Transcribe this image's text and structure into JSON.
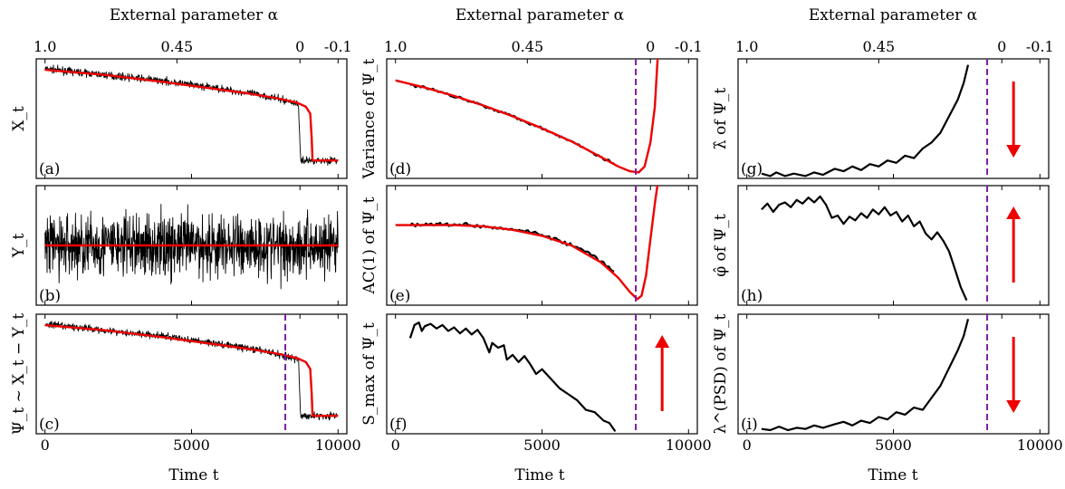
{
  "colors": {
    "data": "#000000",
    "model": "#ee0000",
    "threshold": "#7a1fa2",
    "arrow": "#ee0000"
  },
  "top_axis": {
    "label": "External parameter α",
    "ticks": [
      "1.0",
      "0.45",
      "0",
      "-0.1"
    ],
    "tick_times": [
      0,
      4500,
      8700,
      10000
    ]
  },
  "bottom_axis": {
    "label": "Time t",
    "ticks": [
      "0",
      "5000",
      "10000"
    ],
    "tick_times": [
      0,
      5000,
      10000
    ]
  },
  "x_range": [
    -300,
    10300
  ],
  "threshold_time": 8200,
  "chart_data": [
    {
      "id": "a",
      "type": "line",
      "panel_label": "(a)",
      "ylabel": "X_t",
      "ylim": [
        -0.1,
        1.1
      ],
      "series": [
        {
          "role": "data",
          "kind": "noisy",
          "noise": 0.025,
          "points": [
            [
              0,
              1.0
            ],
            [
              2000,
              0.94
            ],
            [
              4000,
              0.88
            ],
            [
              6000,
              0.8
            ],
            [
              7500,
              0.73
            ],
            [
              8500,
              0.66
            ],
            [
              8650,
              0.64
            ],
            [
              8720,
              0.08
            ],
            [
              10000,
              0.08
            ]
          ]
        },
        {
          "role": "model",
          "points": [
            [
              0,
              0.99
            ],
            [
              2000,
              0.94
            ],
            [
              4000,
              0.87
            ],
            [
              6000,
              0.79
            ],
            [
              7000,
              0.75
            ],
            [
              8000,
              0.7
            ],
            [
              8600,
              0.66
            ],
            [
              8900,
              0.62
            ],
            [
              9050,
              0.55
            ],
            [
              9100,
              0.3
            ],
            [
              9130,
              0.08
            ],
            [
              10000,
              0.08
            ]
          ]
        }
      ]
    },
    {
      "id": "b",
      "type": "line",
      "panel_label": "(b)",
      "ylabel": "Y_t",
      "ylim": [
        -1.0,
        1.0
      ],
      "series": [
        {
          "role": "data",
          "kind": "noise_band",
          "amplitude": 0.9,
          "points": [
            [
              0,
              0
            ],
            [
              10000,
              0
            ]
          ]
        },
        {
          "role": "model",
          "points": [
            [
              0,
              0
            ],
            [
              10000,
              0
            ]
          ]
        }
      ]
    },
    {
      "id": "c",
      "type": "line",
      "panel_label": "(c)",
      "ylabel": "Ψ_t ~ X_t − Y_t",
      "ylim": [
        -0.1,
        1.1
      ],
      "threshold": true,
      "series": [
        {
          "role": "data",
          "kind": "noisy",
          "noise": 0.025,
          "points": [
            [
              0,
              1.0
            ],
            [
              2000,
              0.94
            ],
            [
              4000,
              0.88
            ],
            [
              6000,
              0.8
            ],
            [
              7500,
              0.73
            ],
            [
              8500,
              0.66
            ],
            [
              8650,
              0.64
            ],
            [
              8720,
              0.08
            ],
            [
              10000,
              0.08
            ]
          ]
        },
        {
          "role": "model",
          "points": [
            [
              0,
              0.99
            ],
            [
              2000,
              0.94
            ],
            [
              4000,
              0.87
            ],
            [
              6000,
              0.79
            ],
            [
              7000,
              0.75
            ],
            [
              8000,
              0.7
            ],
            [
              8600,
              0.66
            ],
            [
              8900,
              0.62
            ],
            [
              9050,
              0.55
            ],
            [
              9100,
              0.3
            ],
            [
              9130,
              0.08
            ],
            [
              10000,
              0.08
            ]
          ]
        }
      ]
    },
    {
      "id": "d",
      "type": "line",
      "panel_label": "(d)",
      "ylabel": "Variance of Ψ_t",
      "ylim": [
        0,
        1
      ],
      "threshold": true,
      "series": [
        {
          "role": "data",
          "kind": "jitter",
          "noise": 0.008,
          "points": [
            [
              500,
              0.78
            ],
            [
              1000,
              0.76
            ],
            [
              2000,
              0.69
            ],
            [
              3000,
              0.61
            ],
            [
              4000,
              0.52
            ],
            [
              5000,
              0.42
            ],
            [
              6000,
              0.31
            ],
            [
              7000,
              0.18
            ],
            [
              7500,
              0.12
            ]
          ]
        },
        {
          "role": "model",
          "points": [
            [
              0,
              0.82
            ],
            [
              1000,
              0.76
            ],
            [
              2000,
              0.69
            ],
            [
              3000,
              0.61
            ],
            [
              4000,
              0.52
            ],
            [
              5000,
              0.42
            ],
            [
              6000,
              0.31
            ],
            [
              7000,
              0.18
            ],
            [
              7600,
              0.1
            ],
            [
              8000,
              0.06
            ],
            [
              8300,
              0.05
            ],
            [
              8500,
              0.1
            ],
            [
              8700,
              0.3
            ],
            [
              8850,
              0.6
            ],
            [
              8950,
              1.02
            ]
          ]
        }
      ]
    },
    {
      "id": "e",
      "type": "line",
      "panel_label": "(e)",
      "ylabel": "AC(1) of Ψ_t",
      "ylim": [
        0,
        1
      ],
      "threshold": true,
      "series": [
        {
          "role": "data",
          "kind": "jitter",
          "noise": 0.01,
          "points": [
            [
              500,
              0.67
            ],
            [
              1500,
              0.68
            ],
            [
              2500,
              0.67
            ],
            [
              3500,
              0.65
            ],
            [
              4500,
              0.62
            ],
            [
              5500,
              0.55
            ],
            [
              6500,
              0.45
            ],
            [
              7200,
              0.33
            ],
            [
              7500,
              0.27
            ]
          ]
        },
        {
          "role": "model",
          "points": [
            [
              0,
              0.67
            ],
            [
              2000,
              0.67
            ],
            [
              3000,
              0.66
            ],
            [
              4000,
              0.63
            ],
            [
              5000,
              0.58
            ],
            [
              6000,
              0.5
            ],
            [
              7000,
              0.36
            ],
            [
              7600,
              0.23
            ],
            [
              8000,
              0.11
            ],
            [
              8250,
              0.05
            ],
            [
              8400,
              0.08
            ],
            [
              8550,
              0.25
            ],
            [
              8700,
              0.55
            ],
            [
              8850,
              0.85
            ],
            [
              8950,
              1.02
            ]
          ]
        }
      ]
    },
    {
      "id": "f",
      "type": "line",
      "panel_label": "(f)",
      "ylabel": "S_max of Ψ_t",
      "ylim": [
        0,
        1
      ],
      "threshold": true,
      "arrow": "up",
      "series": [
        {
          "role": "data",
          "points": [
            [
              500,
              0.8
            ],
            [
              650,
              0.91
            ],
            [
              800,
              0.93
            ],
            [
              900,
              0.86
            ],
            [
              1000,
              0.9
            ],
            [
              1200,
              0.92
            ],
            [
              1400,
              0.88
            ],
            [
              1600,
              0.91
            ],
            [
              1800,
              0.86
            ],
            [
              2000,
              0.89
            ],
            [
              2200,
              0.84
            ],
            [
              2400,
              0.88
            ],
            [
              2600,
              0.83
            ],
            [
              2800,
              0.87
            ],
            [
              3000,
              0.8
            ],
            [
              3200,
              0.68
            ],
            [
              3300,
              0.76
            ],
            [
              3500,
              0.72
            ],
            [
              3700,
              0.74
            ],
            [
              3800,
              0.62
            ],
            [
              4000,
              0.66
            ],
            [
              4200,
              0.6
            ],
            [
              4400,
              0.65
            ],
            [
              4600,
              0.58
            ],
            [
              4800,
              0.5
            ],
            [
              5000,
              0.54
            ],
            [
              5300,
              0.46
            ],
            [
              5600,
              0.38
            ],
            [
              5900,
              0.33
            ],
            [
              6200,
              0.28
            ],
            [
              6500,
              0.2
            ],
            [
              6800,
              0.18
            ],
            [
              7100,
              0.11
            ],
            [
              7300,
              0.09
            ],
            [
              7500,
              0.02
            ]
          ]
        }
      ]
    },
    {
      "id": "g",
      "type": "line",
      "panel_label": "(g)",
      "ylabel": "λ̂ of Ψ_t",
      "ylim": [
        0,
        1
      ],
      "threshold": true,
      "arrow": "down",
      "series": [
        {
          "role": "data",
          "points": [
            [
              500,
              0.04
            ],
            [
              800,
              0.02
            ],
            [
              1000,
              0.05
            ],
            [
              1300,
              0.02
            ],
            [
              1600,
              0.04
            ],
            [
              2000,
              0.02
            ],
            [
              2300,
              0.05
            ],
            [
              2600,
              0.03
            ],
            [
              3000,
              0.08
            ],
            [
              3300,
              0.06
            ],
            [
              3600,
              0.1
            ],
            [
              3900,
              0.07
            ],
            [
              4200,
              0.12
            ],
            [
              4500,
              0.1
            ],
            [
              4800,
              0.15
            ],
            [
              5100,
              0.13
            ],
            [
              5400,
              0.19
            ],
            [
              5700,
              0.17
            ],
            [
              6000,
              0.25
            ],
            [
              6300,
              0.3
            ],
            [
              6600,
              0.38
            ],
            [
              6900,
              0.52
            ],
            [
              7200,
              0.66
            ],
            [
              7400,
              0.8
            ],
            [
              7550,
              0.95
            ]
          ]
        }
      ]
    },
    {
      "id": "h",
      "type": "line",
      "panel_label": "(h)",
      "ylabel": "φ̂ of Ψ_t",
      "ylim": [
        0,
        1
      ],
      "threshold": true,
      "arrow": "up",
      "series": [
        {
          "role": "data",
          "points": [
            [
              500,
              0.8
            ],
            [
              700,
              0.85
            ],
            [
              900,
              0.78
            ],
            [
              1100,
              0.84
            ],
            [
              1300,
              0.86
            ],
            [
              1500,
              0.82
            ],
            [
              1700,
              0.88
            ],
            [
              1900,
              0.85
            ],
            [
              2100,
              0.9
            ],
            [
              2300,
              0.86
            ],
            [
              2500,
              0.91
            ],
            [
              2700,
              0.84
            ],
            [
              2900,
              0.73
            ],
            [
              3100,
              0.75
            ],
            [
              3300,
              0.68
            ],
            [
              3500,
              0.74
            ],
            [
              3700,
              0.71
            ],
            [
              3900,
              0.77
            ],
            [
              4100,
              0.73
            ],
            [
              4300,
              0.8
            ],
            [
              4500,
              0.76
            ],
            [
              4700,
              0.82
            ],
            [
              4900,
              0.75
            ],
            [
              5100,
              0.78
            ],
            [
              5300,
              0.7
            ],
            [
              5500,
              0.75
            ],
            [
              5700,
              0.66
            ],
            [
              5900,
              0.7
            ],
            [
              6100,
              0.6
            ],
            [
              6300,
              0.55
            ],
            [
              6500,
              0.61
            ],
            [
              6700,
              0.54
            ],
            [
              6900,
              0.45
            ],
            [
              7100,
              0.3
            ],
            [
              7300,
              0.15
            ],
            [
              7500,
              0.04
            ]
          ]
        }
      ]
    },
    {
      "id": "i",
      "type": "line",
      "panel_label": "(i)",
      "ylabel": "λ^(PSD) of Ψ_t",
      "ylim": [
        0,
        1
      ],
      "threshold": true,
      "arrow": "down",
      "series": [
        {
          "role": "data",
          "points": [
            [
              500,
              0.04
            ],
            [
              800,
              0.03
            ],
            [
              1100,
              0.06
            ],
            [
              1400,
              0.03
            ],
            [
              1700,
              0.05
            ],
            [
              2000,
              0.04
            ],
            [
              2300,
              0.07
            ],
            [
              2600,
              0.05
            ],
            [
              3000,
              0.08
            ],
            [
              3300,
              0.1
            ],
            [
              3600,
              0.07
            ],
            [
              3900,
              0.11
            ],
            [
              4200,
              0.09
            ],
            [
              4500,
              0.14
            ],
            [
              4800,
              0.12
            ],
            [
              5100,
              0.18
            ],
            [
              5400,
              0.16
            ],
            [
              5700,
              0.22
            ],
            [
              6000,
              0.2
            ],
            [
              6300,
              0.3
            ],
            [
              6600,
              0.4
            ],
            [
              6900,
              0.55
            ],
            [
              7200,
              0.7
            ],
            [
              7400,
              0.82
            ],
            [
              7550,
              0.96
            ]
          ]
        }
      ]
    }
  ]
}
